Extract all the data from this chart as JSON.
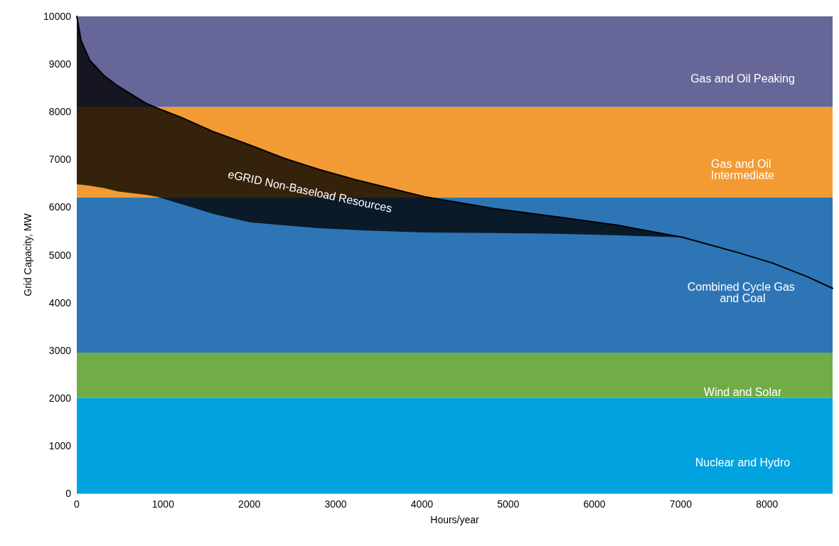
{
  "chart_data": {
    "type": "line",
    "xlabel": "Hours/year",
    "ylabel": "Grid Capacity, MW",
    "xlim": [
      0,
      8760
    ],
    "xticks": [
      0,
      1000,
      2000,
      3000,
      4000,
      5000,
      6000,
      7000,
      8000
    ],
    "ylim": [
      0,
      10000
    ],
    "yticks": [
      0,
      1000,
      2000,
      3000,
      4000,
      5000,
      6000,
      7000,
      8000,
      9000,
      10000
    ],
    "grid": false,
    "marker": "none",
    "line_style": "solid",
    "bands": [
      {
        "axis": "y",
        "from": 0,
        "to": 2000,
        "label": "Nuclear and Hydro",
        "color": "#00a2e0"
      },
      {
        "axis": "y",
        "from": 2000,
        "to": 2950,
        "label": "Wind and Solar",
        "color": "#70ad47"
      },
      {
        "axis": "y",
        "from": 2950,
        "to": 6200,
        "label": "Combined Cycle Gas and Coal",
        "color": "#2e75b6"
      },
      {
        "axis": "y",
        "from": 6200,
        "to": 8100,
        "label": "Gas and Oil Intermediate",
        "color": "#f29b34"
      },
      {
        "axis": "y",
        "from": 8100,
        "to": 10000,
        "label": "Gas and Oil Peaking",
        "color": "#676699"
      }
    ],
    "series": [
      {
        "color": "#000000",
        "x": [
          0,
          50,
          150,
          315,
          476,
          800,
          930,
          1200,
          1600,
          2010,
          2410,
          2810,
          3220,
          4030,
          4840,
          5640,
          6280,
          6450,
          7020,
          7660,
          8060,
          8470,
          8760
        ],
        "values": [
          10000,
          9490,
          9080,
          8760,
          8540,
          8180,
          8080,
          7890,
          7570,
          7300,
          7020,
          6790,
          6580,
          6220,
          5970,
          5780,
          5620,
          5560,
          5370,
          5050,
          4830,
          4540,
          4300
        ],
        "lower": [
          6480,
          6470,
          6450,
          6400,
          6330,
          6260,
          6220,
          6070,
          5850,
          5680,
          5620,
          5560,
          5520,
          5470,
          5460,
          5440,
          5410,
          5400,
          5370,
          null,
          null,
          null,
          null
        ],
        "upper": [
          10000,
          9490,
          9080,
          8760,
          8540,
          8180,
          8080,
          7890,
          7570,
          7300,
          7020,
          6790,
          6580,
          6220,
          5970,
          5780,
          5620,
          5560,
          5370,
          null,
          null,
          null,
          null
        ]
      }
    ],
    "annotations": [
      "eGRID Non-Baseload Resources"
    ]
  }
}
